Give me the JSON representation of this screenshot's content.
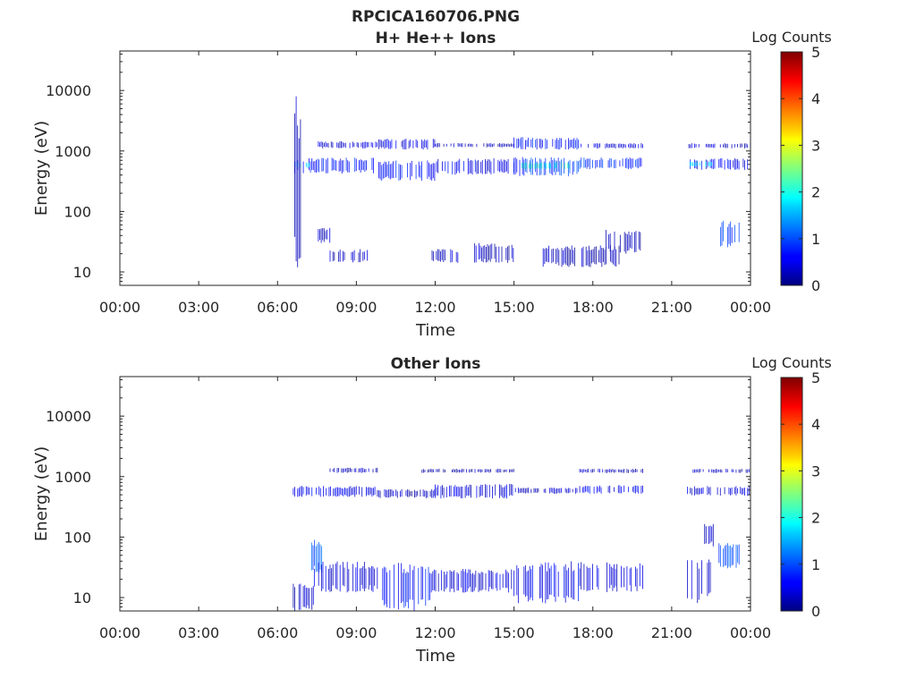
{
  "figure_title": "RPCICA160706.PNG",
  "chart_data": [
    {
      "type": "heatmap",
      "title": "H+ He++ Ions",
      "xlabel": "Time",
      "ylabel": "Energy (eV)",
      "y_scale": "log",
      "ylim": [
        6,
        45000
      ],
      "xlim_hours": [
        0,
        24
      ],
      "x_ticks": [
        "00:00",
        "03:00",
        "06:00",
        "09:00",
        "12:00",
        "15:00",
        "18:00",
        "21:00",
        "00:00"
      ],
      "y_ticks": [
        {
          "value": 10,
          "label": "10"
        },
        {
          "value": 100,
          "label": "100"
        },
        {
          "value": 1000,
          "label": "1000"
        },
        {
          "value": 10000,
          "label": "10000"
        }
      ],
      "colorbar": {
        "label": "Log Counts",
        "min": 0,
        "max": 5,
        "ticks": [
          "0",
          "1",
          "2",
          "3",
          "4",
          "5"
        ],
        "colormap": "jet"
      },
      "bands": [
        {
          "t": [
            6.6,
            9.8
          ],
          "e": [
            420,
            780
          ],
          "level": 0.75
        },
        {
          "t": [
            9.8,
            12.0
          ],
          "e": [
            320,
            700
          ],
          "level": 0.7
        },
        {
          "t": [
            12.0,
            15.0
          ],
          "e": [
            400,
            760
          ],
          "level": 0.55
        },
        {
          "t": [
            15.0,
            17.5
          ],
          "e": [
            380,
            800
          ],
          "level": 0.9
        },
        {
          "t": [
            15.3,
            17.2
          ],
          "e": [
            500,
            650
          ],
          "level": 2.1
        },
        {
          "t": [
            6.6,
            7.2
          ],
          "e": [
            520,
            660
          ],
          "level": 1.9
        },
        {
          "t": [
            17.5,
            19.9
          ],
          "e": [
            500,
            780
          ],
          "level": 0.8
        },
        {
          "t": [
            21.6,
            24.0
          ],
          "e": [
            480,
            760
          ],
          "level": 0.6
        },
        {
          "t": [
            21.7,
            22.6
          ],
          "e": [
            540,
            680
          ],
          "level": 1.7
        },
        {
          "t": [
            7.5,
            9.8
          ],
          "e": [
            1100,
            1450
          ],
          "level": 0.45
        },
        {
          "t": [
            9.8,
            12.0
          ],
          "e": [
            1050,
            1600
          ],
          "level": 0.5
        },
        {
          "t": [
            12.0,
            15.0
          ],
          "e": [
            1150,
            1350
          ],
          "level": 0.3
        },
        {
          "t": [
            15.0,
            17.5
          ],
          "e": [
            1050,
            1700
          ],
          "level": 0.7
        },
        {
          "t": [
            17.5,
            19.9
          ],
          "e": [
            1100,
            1350
          ],
          "level": 0.45
        },
        {
          "t": [
            21.6,
            24.0
          ],
          "e": [
            1100,
            1350
          ],
          "level": 0.35
        },
        {
          "t": [
            7.5,
            8.0
          ],
          "e": [
            30,
            55
          ],
          "level": 0.4
        },
        {
          "t": [
            8.0,
            9.5
          ],
          "e": [
            14,
            24
          ],
          "level": 0.35
        },
        {
          "t": [
            11.5,
            13.0
          ],
          "e": [
            14,
            24
          ],
          "level": 0.3
        },
        {
          "t": [
            13.5,
            15.0
          ],
          "e": [
            14,
            30
          ],
          "level": 0.3
        },
        {
          "t": [
            16.0,
            19.0
          ],
          "e": [
            12,
            28
          ],
          "level": 0.3
        },
        {
          "t": [
            18.5,
            19.9
          ],
          "e": [
            20,
            50
          ],
          "level": 0.3
        },
        {
          "t": [
            22.8,
            23.6
          ],
          "e": [
            25,
            70
          ],
          "level": 0.9
        },
        {
          "t": [
            6.6,
            7.0
          ],
          "e": [
            10,
            8000
          ],
          "level": 0.2
        }
      ]
    },
    {
      "type": "heatmap",
      "title": "Other Ions",
      "xlabel": "Time",
      "ylabel": "Energy (eV)",
      "y_scale": "log",
      "ylim": [
        6,
        45000
      ],
      "xlim_hours": [
        0,
        24
      ],
      "x_ticks": [
        "00:00",
        "03:00",
        "06:00",
        "09:00",
        "12:00",
        "15:00",
        "18:00",
        "21:00",
        "00:00"
      ],
      "y_ticks": [
        {
          "value": 10,
          "label": "10"
        },
        {
          "value": 100,
          "label": "100"
        },
        {
          "value": 1000,
          "label": "1000"
        },
        {
          "value": 10000,
          "label": "10000"
        }
      ],
      "colorbar": {
        "label": "Log Counts",
        "min": 0,
        "max": 5,
        "ticks": [
          "0",
          "1",
          "2",
          "3",
          "4",
          "5"
        ],
        "colormap": "jet"
      },
      "bands": [
        {
          "t": [
            6.6,
            9.8
          ],
          "e": [
            460,
            700
          ],
          "level": 0.55
        },
        {
          "t": [
            9.8,
            12.0
          ],
          "e": [
            440,
            620
          ],
          "level": 0.3
        },
        {
          "t": [
            12.0,
            15.0
          ],
          "e": [
            430,
            760
          ],
          "level": 0.45
        },
        {
          "t": [
            15.0,
            17.5
          ],
          "e": [
            520,
            660
          ],
          "level": 0.3
        },
        {
          "t": [
            17.5,
            19.9
          ],
          "e": [
            520,
            720
          ],
          "level": 0.55
        },
        {
          "t": [
            21.6,
            24.0
          ],
          "e": [
            480,
            700
          ],
          "level": 0.45
        },
        {
          "t": [
            8.0,
            9.8
          ],
          "e": [
            1150,
            1400
          ],
          "level": 0.3
        },
        {
          "t": [
            11.5,
            15.0
          ],
          "e": [
            1150,
            1350
          ],
          "level": 0.2
        },
        {
          "t": [
            17.5,
            19.9
          ],
          "e": [
            1150,
            1350
          ],
          "level": 0.3
        },
        {
          "t": [
            21.6,
            24.0
          ],
          "e": [
            1150,
            1350
          ],
          "level": 0.3
        },
        {
          "t": [
            6.6,
            7.4
          ],
          "e": [
            6,
            18
          ],
          "level": 0.35
        },
        {
          "t": [
            7.3,
            7.7
          ],
          "e": [
            25,
            90
          ],
          "level": 1.0
        },
        {
          "t": [
            7.4,
            9.8
          ],
          "e": [
            12,
            40
          ],
          "level": 0.45
        },
        {
          "t": [
            10.0,
            11.8
          ],
          "e": [
            6,
            38
          ],
          "level": 0.65
        },
        {
          "t": [
            11.8,
            15.0
          ],
          "e": [
            12,
            30
          ],
          "level": 0.45
        },
        {
          "t": [
            15.0,
            17.5
          ],
          "e": [
            8,
            40
          ],
          "level": 0.55
        },
        {
          "t": [
            17.5,
            19.9
          ],
          "e": [
            12,
            40
          ],
          "level": 0.45
        },
        {
          "t": [
            21.6,
            22.5
          ],
          "e": [
            8,
            45
          ],
          "level": 0.4
        },
        {
          "t": [
            22.8,
            23.6
          ],
          "e": [
            30,
            80
          ],
          "level": 1.0
        },
        {
          "t": [
            22.2,
            22.6
          ],
          "e": [
            70,
            180
          ],
          "level": 0.3
        }
      ]
    }
  ]
}
